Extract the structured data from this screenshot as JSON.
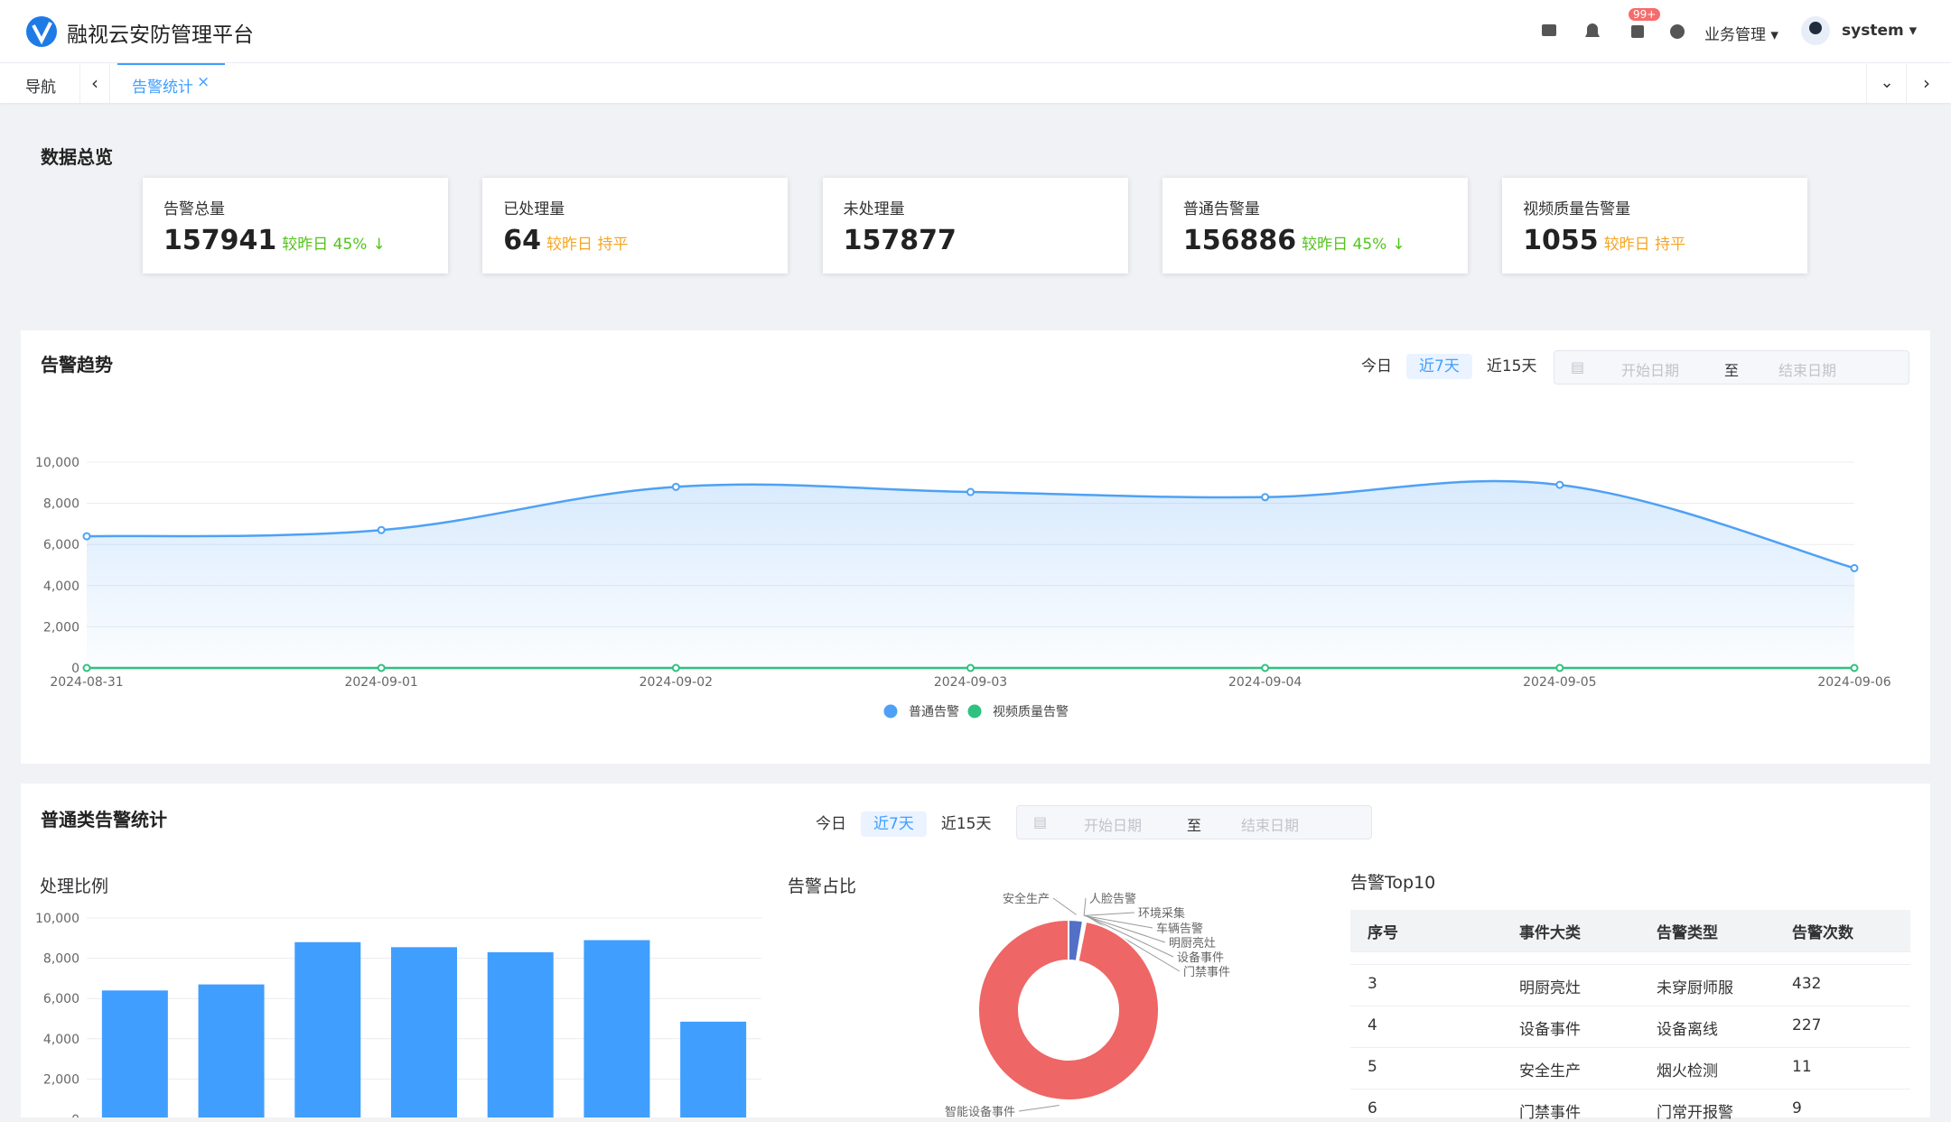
{
  "header": {
    "title": "融视云安防管理平台",
    "badge": "99+",
    "menu": "业务管理",
    "user": "system"
  },
  "tabs": {
    "nav": "导航",
    "active": "告警统计"
  },
  "overview": {
    "title": "数据总览",
    "cards": [
      {
        "label": "告警总量",
        "value": 157941,
        "compare": "较昨日 45%"
      },
      {
        "label": "已处理量",
        "value": 64,
        "compare": "较昨日 持平"
      },
      {
        "label": "未处理量",
        "value": 157877
      },
      {
        "label": "普通告警量",
        "value": 156886,
        "compare": "较昨日 45%"
      },
      {
        "label": "视频质量告警量",
        "value": 1055,
        "compare": "较昨日 持平"
      }
    ]
  },
  "trend": {
    "title": "告警趋势",
    "filters": [
      "今日",
      "近7天",
      "近15天"
    ],
    "date_start": "开始日期",
    "date_to": "至",
    "date_end": "结束日期"
  },
  "normal": {
    "title": "普通类告警统计",
    "filters": [
      "今日",
      "近7天",
      "近15天"
    ],
    "date_start": "开始日期",
    "date_to": "至",
    "date_end": "结束日期"
  },
  "top10": {
    "title": "告警Top10",
    "columns": [
      "序号",
      "事件大类",
      "告警类型",
      "告警次数"
    ],
    "rows": [
      [
        "3",
        "明厨亮灶",
        "未穿厨师服",
        "432"
      ],
      [
        "4",
        "设备事件",
        "设备离线",
        "227"
      ],
      [
        "5",
        "安全生产",
        "烟火检测",
        "11"
      ],
      [
        "6",
        "门禁事件",
        "门常开报警",
        "9"
      ]
    ]
  },
  "chart_data": [
    {
      "type": "line",
      "x": [
        "2024-08-31",
        "2024-09-01",
        "2024-09-02",
        "2024-09-03",
        "2024-09-04",
        "2024-09-05",
        "2024-09-06"
      ],
      "series": [
        {
          "name": "普通告警",
          "color": "#4ea1f5",
          "values": [
            6400,
            6700,
            8800,
            8550,
            8300,
            8900,
            4850
          ]
        },
        {
          "name": "视频质量告警",
          "color": "#2ec27e",
          "values": [
            0,
            0,
            0,
            0,
            0,
            0,
            0
          ]
        }
      ],
      "ylim": [
        0,
        10000
      ],
      "yticks": [
        0,
        {
          "value": 2000,
          "label": "2,000"
        },
        {
          "value": 4000,
          "label": "4,000"
        },
        {
          "value": 6000,
          "label": "6,000"
        },
        {
          "value": 8000,
          "label": "8,000"
        },
        {
          "value": 10000,
          "label": "10,000"
        }
      ],
      "grid": true
    },
    {
      "type": "bar",
      "title": "处理比例",
      "color": "#409eff",
      "values": [
        6400,
        6700,
        8800,
        8550,
        8300,
        8900,
        4850
      ],
      "ylim": [
        0,
        10000
      ],
      "yticks": [
        0,
        {
          "value": 2000,
          "label": "2,000"
        },
        {
          "value": 4000,
          "label": "4,000"
        },
        {
          "value": 6000,
          "label": "6,000"
        },
        {
          "value": 8000,
          "label": "8,000"
        },
        {
          "value": 10000,
          "label": "10,000"
        }
      ],
      "grid": true
    },
    {
      "type": "pie",
      "title": "告警占比",
      "categories": [
        "安全生产",
        "人脸告警",
        "环境采集",
        "车辆告警",
        "明厨亮灶",
        "设备事件",
        "门禁事件",
        "智能设备事件"
      ],
      "values": [
        4000,
        50,
        50,
        50,
        432,
        227,
        9,
        151000
      ],
      "colors": [
        "#5470c6",
        "#91cc75",
        "#fac858",
        "#73c0de",
        "#3ba272",
        "#fc8452",
        "#9a60b4",
        "#ee6666"
      ]
    }
  ]
}
